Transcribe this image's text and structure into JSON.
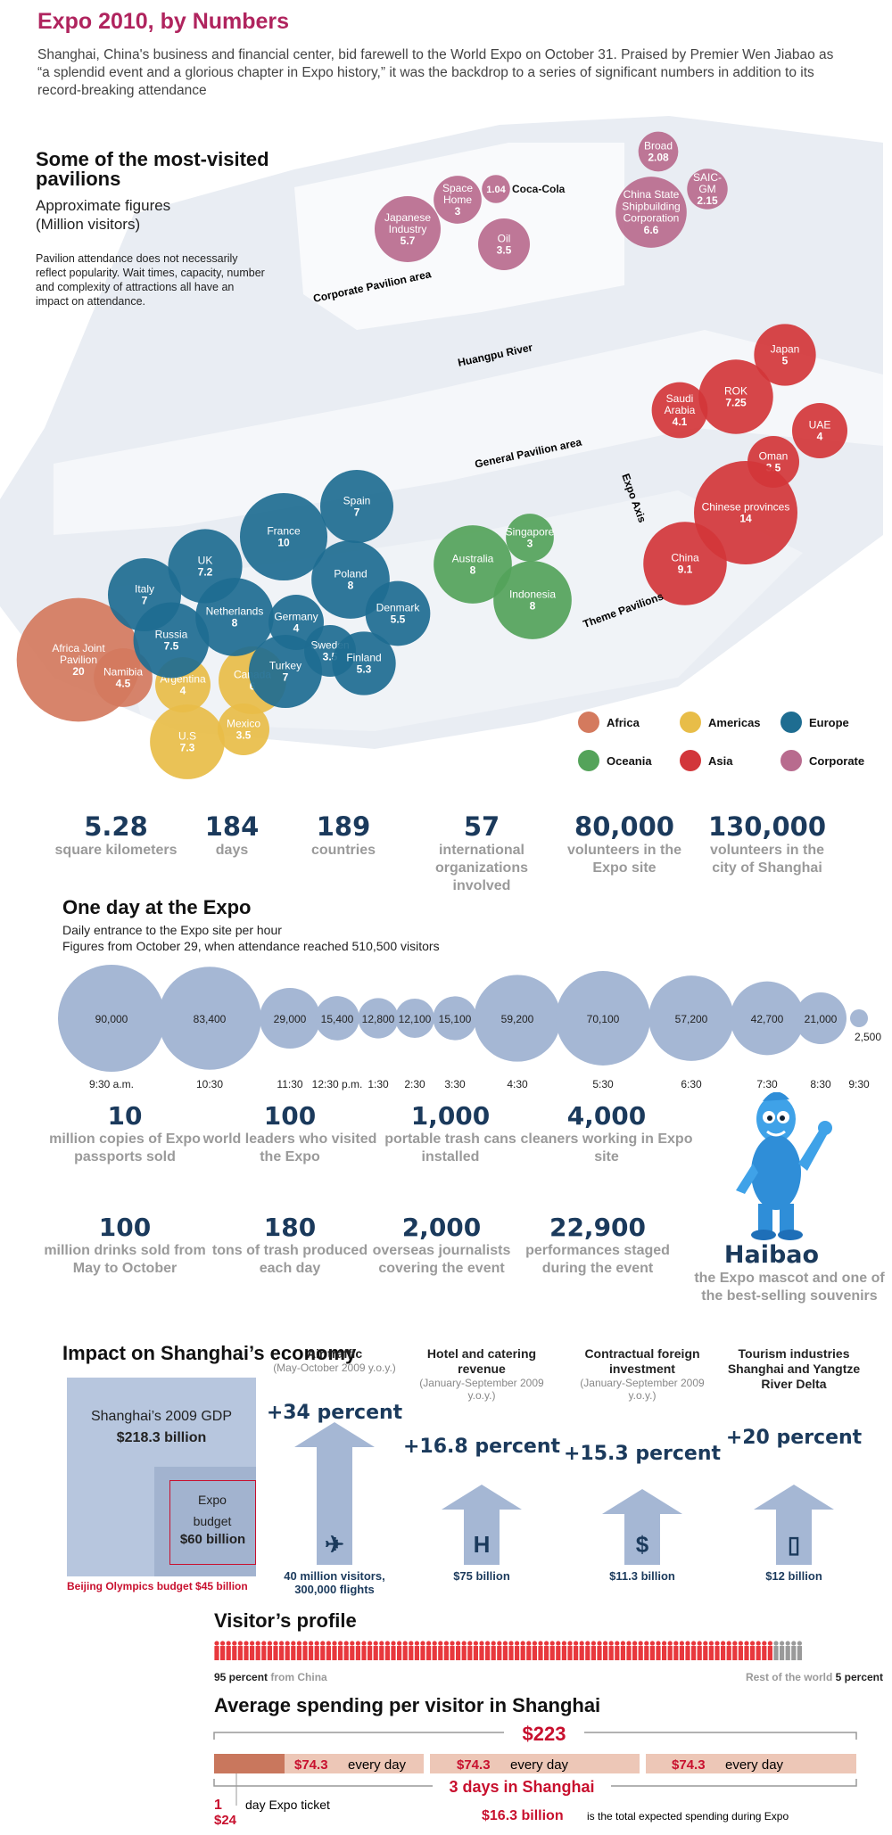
{
  "title": "Expo 2010, by Numbers",
  "intro": "Shanghai, China's business and financial center, bid farewell to the World Expo on October 31. Praised by Premier Wen Jiabao as “a splendid event and a glorious chapter in Expo history,” it was the backdrop to a series of significant numbers in addition to its record-breaking attendance",
  "pavilions": {
    "heading": "Some of the most-visited pavilions",
    "subheading": "Approximate figures (Million visitors)",
    "note": "Pavilion attendance does not necessarily reflect popularity. Wait times, capacity, number and complexity of attractions all have an impact on attendance.",
    "map_labels": {
      "corporate_area": "Corporate Pavilion area",
      "river": "Huangpu River",
      "general_area": "General Pavilion area",
      "axis": "Expo Axis",
      "theme": "Theme Pavilions"
    },
    "legend": [
      {
        "name": "Africa",
        "color": "#d47a5e"
      },
      {
        "name": "Americas",
        "color": "#e8bd48"
      },
      {
        "name": "Europe",
        "color": "#1e6d91"
      },
      {
        "name": "Oceania",
        "color": "#54a35a"
      },
      {
        "name": "Asia",
        "color": "#d2363a"
      },
      {
        "name": "Corporate",
        "color": "#b86b8e"
      }
    ]
  },
  "chart_data": [
    {
      "type": "bubble",
      "title": "Some of the most-visited pavilions",
      "unit": "Million visitors",
      "series": [
        {
          "name": "Africa",
          "points": [
            {
              "label": "Africa Joint Pavilion",
              "value": 20
            },
            {
              "label": "Namibia",
              "value": 4.5
            }
          ]
        },
        {
          "name": "Americas",
          "points": [
            {
              "label": "Argentina",
              "value": 4
            },
            {
              "label": "Canada",
              "value": 6
            },
            {
              "label": "U.S",
              "value": 7.3
            },
            {
              "label": "Mexico",
              "value": 3.5
            }
          ]
        },
        {
          "name": "Europe",
          "points": [
            {
              "label": "Spain",
              "value": 7
            },
            {
              "label": "France",
              "value": 10
            },
            {
              "label": "UK",
              "value": 7.2
            },
            {
              "label": "Italy",
              "value": 7
            },
            {
              "label": "Poland",
              "value": 8
            },
            {
              "label": "Netherlands",
              "value": 8
            },
            {
              "label": "Germany",
              "value": 4
            },
            {
              "label": "Russia",
              "value": 7.5
            },
            {
              "label": "Denmark",
              "value": 5.5
            },
            {
              "label": "Sweden",
              "value": 3.5
            },
            {
              "label": "Turkey",
              "value": 7
            },
            {
              "label": "Finland",
              "value": 5.3
            }
          ]
        },
        {
          "name": "Oceania",
          "points": [
            {
              "label": "Australia",
              "value": 8
            },
            {
              "label": "Singapore",
              "value": 3
            },
            {
              "label": "Indonesia",
              "value": 8
            }
          ]
        },
        {
          "name": "Asia",
          "points": [
            {
              "label": "Japan",
              "value": 5
            },
            {
              "label": "ROK",
              "value": 7.25
            },
            {
              "label": "Saudi Arabia",
              "value": 4.1
            },
            {
              "label": "UAE",
              "value": 4
            },
            {
              "label": "Oman",
              "value": 3.5
            },
            {
              "label": "Chinese provinces",
              "value": 14
            },
            {
              "label": "China",
              "value": 9.1
            }
          ]
        },
        {
          "name": "Corporate",
          "points": [
            {
              "label": "Japanese Industry",
              "value": 5.7
            },
            {
              "label": "Space Home",
              "value": 3
            },
            {
              "label": "Coca-Cola",
              "value": 1.04
            },
            {
              "label": "Oil",
              "value": 3.5
            },
            {
              "label": "Broad",
              "value": 2.08
            },
            {
              "label": "China State Shipbuilding Corporation",
              "value": 6.6
            },
            {
              "label": "SAIC-GM",
              "value": 2.15
            }
          ]
        }
      ]
    },
    {
      "type": "bubble",
      "title": "One day at the Expo",
      "subtitle": "Daily entrance to the Expo site per hour",
      "note": "Figures from October 29, when attendance reached 510,500 visitors",
      "categories": [
        "9:30 a.m.",
        "10:30",
        "11:30",
        "12:30 p.m.",
        "1:30",
        "2:30",
        "3:30",
        "4:30",
        "5:30",
        "6:30",
        "7:30",
        "8:30",
        "9:30"
      ],
      "values": [
        90000,
        83400,
        29000,
        15400,
        12800,
        12100,
        15100,
        59200,
        70100,
        57200,
        42700,
        21000,
        2500
      ],
      "value_labels": [
        "90,000",
        "83,400",
        "29,000",
        "15,400",
        "12,800",
        "12,100",
        "15,100",
        "59,200",
        "70,100",
        "57,200",
        "42,700",
        "21,000",
        "2,500"
      ]
    },
    {
      "type": "bar",
      "title": "Visitor's profile",
      "categories": [
        "China",
        "Rest of the world"
      ],
      "values": [
        95,
        5
      ],
      "unit": "percent"
    }
  ],
  "stats1": [
    {
      "num": "5.28",
      "cap": "square kilometers"
    },
    {
      "num": "184",
      "cap": "days"
    },
    {
      "num": "189",
      "cap": "countries"
    },
    {
      "num": "57",
      "cap": "international organizations involved"
    },
    {
      "num": "80,000",
      "cap": "volunteers in the Expo site"
    },
    {
      "num": "130,000",
      "cap": "volunteers in the city of Shanghai"
    }
  ],
  "oneday": {
    "heading": "One day at the Expo",
    "sub1": "Daily entrance to the Expo site per hour",
    "sub2": "Figures from October 29, when attendance reached 510,500 visitors"
  },
  "stats2": [
    {
      "num": "10",
      "cap": "million copies of Expo passports sold"
    },
    {
      "num": "100",
      "cap": "world leaders who visited the Expo"
    },
    {
      "num": "1,000",
      "cap": "portable trash cans installed"
    },
    {
      "num": "4,000",
      "cap": "cleaners working in Expo site"
    },
    {
      "num": "100",
      "cap": "million drinks sold from May to October"
    },
    {
      "num": "180",
      "cap": "tons of trash produced each day"
    },
    {
      "num": "2,000",
      "cap": "overseas journalists covering the event"
    },
    {
      "num": "22,900",
      "cap": "performances staged during the event"
    }
  ],
  "haibao": {
    "name": "Haibao",
    "cap": "the Expo mascot and one of the best-selling souvenirs"
  },
  "economy": {
    "heading": "Impact on Shanghai’s economy",
    "gdp_label": "Shanghai’s 2009 GDP",
    "gdp_value": "$218.3 billion",
    "budget_label": "Expo budget",
    "budget_value": "$60 billion",
    "olympics": "Beijing Olympics budget $45 billion",
    "items": [
      {
        "title": "Air traffic",
        "range": "(May-October 2009 y.o.y.)",
        "pct": "+34 percent",
        "icon": "airplane-icon",
        "val": "40 million visitors, 300,000 flights"
      },
      {
        "title": "Hotel and catering revenue",
        "range": "(January-September 2009 y.o.y.)",
        "pct": "+16.8 percent",
        "icon": "hotel-icon",
        "val": "$75 billion"
      },
      {
        "title": "Contractual foreign investment",
        "range": "(January-September 2009 y.o.y.)",
        "pct": "+15.3 percent",
        "icon": "dollar-icon",
        "val": "$11.3 billion"
      },
      {
        "title": "Tourism industries Shanghai and Yangtze River Delta",
        "range": "",
        "pct": "+20 percent",
        "icon": "luggage-icon",
        "val": "$12 billion"
      }
    ]
  },
  "visitor": {
    "heading": "Visitor’s profile",
    "china_pct": "95 percent",
    "china_lbl": "from China",
    "rest_lbl": "Rest of the world",
    "rest_pct": "5 percent",
    "china_color": "#e8383d",
    "rest_color": "#9a9a9a"
  },
  "spending": {
    "heading": "Average spending per visitor in Shanghai",
    "total": "$223",
    "day_amount": "$74.3",
    "day_text": "every day",
    "days": "3 days in Shanghai",
    "ticket_num": "1",
    "ticket_text": "day Expo ticket",
    "ticket_price": "$24",
    "total_exp": "$16.3 billion",
    "total_exp_text": "is the total expected spending during Expo"
  }
}
